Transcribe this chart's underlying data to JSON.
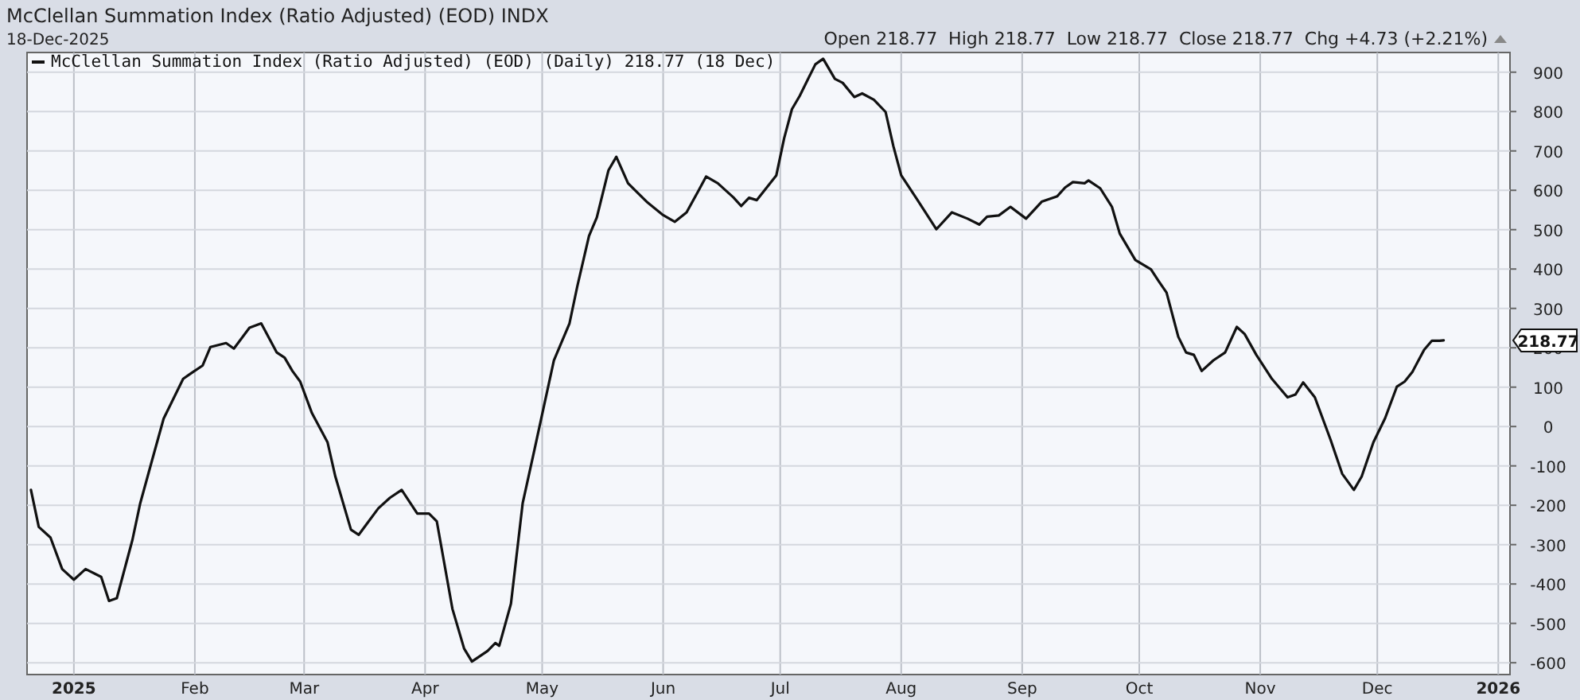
{
  "chart_data": {
    "type": "line",
    "title": "McClellan Summation Index (Ratio Adjusted) (EOD) INDX",
    "subtitle": "18-Dec-2025",
    "annotations": [
      "Open 218.77  High 218.77  Low 218.77  Close 218.77  Chg +4.73 (+2.21%)",
      "218.77"
    ],
    "x": [
      "2024-12-21",
      "2024-12-23",
      "2024-12-26",
      "2024-12-29",
      "2025-01-01",
      "2025-01-04",
      "2025-01-08",
      "2025-01-10",
      "2025-01-12",
      "2025-01-16",
      "2025-01-18",
      "2025-01-21",
      "2025-01-24",
      "2025-01-29",
      "2025-01-31",
      "2025-02-03",
      "2025-02-05",
      "2025-02-09",
      "2025-02-11",
      "2025-02-15",
      "2025-02-18",
      "2025-02-22",
      "2025-02-24",
      "2025-02-26",
      "2025-02-28",
      "2025-03-03",
      "2025-03-07",
      "2025-03-09",
      "2025-03-13",
      "2025-03-15",
      "2025-03-17",
      "2025-03-20",
      "2025-03-23",
      "2025-03-26",
      "2025-03-30",
      "2025-04-02",
      "2025-04-04",
      "2025-04-08",
      "2025-04-11",
      "2025-04-13",
      "2025-04-17",
      "2025-04-19",
      "2025-04-20",
      "2025-04-23",
      "2025-04-26",
      "2025-04-29",
      "2025-05-04",
      "2025-05-08",
      "2025-05-10",
      "2025-05-13",
      "2025-05-15",
      "2025-05-18",
      "2025-05-20",
      "2025-05-23",
      "2025-05-25",
      "2025-05-28",
      "2025-06-01",
      "2025-06-04",
      "2025-06-07",
      "2025-06-10",
      "2025-06-12",
      "2025-06-15",
      "2025-06-19",
      "2025-06-21",
      "2025-06-23",
      "2025-06-25",
      "2025-06-30",
      "2025-07-02",
      "2025-07-04",
      "2025-07-06",
      "2025-07-10",
      "2025-07-12",
      "2025-07-15",
      "2025-07-17",
      "2025-07-20",
      "2025-07-22",
      "2025-07-25",
      "2025-07-28",
      "2025-07-30",
      "2025-08-01",
      "2025-08-05",
      "2025-08-10",
      "2025-08-14",
      "2025-08-18",
      "2025-08-21",
      "2025-08-23",
      "2025-08-26",
      "2025-08-29",
      "2025-09-02",
      "2025-09-06",
      "2025-09-10",
      "2025-09-12",
      "2025-09-14",
      "2025-09-17",
      "2025-09-18",
      "2025-09-21",
      "2025-09-24",
      "2025-09-26",
      "2025-09-30",
      "2025-10-04",
      "2025-10-06",
      "2025-10-08",
      "2025-10-11",
      "2025-10-13",
      "2025-10-15",
      "2025-10-17",
      "2025-10-20",
      "2025-10-23",
      "2025-10-26",
      "2025-10-28",
      "2025-10-31",
      "2025-11-04",
      "2025-11-08",
      "2025-11-10",
      "2025-11-12",
      "2025-11-15",
      "2025-11-19",
      "2025-11-22",
      "2025-11-25",
      "2025-11-27",
      "2025-11-30",
      "2025-12-03",
      "2025-12-06",
      "2025-12-08",
      "2025-12-10",
      "2025-12-13",
      "2025-12-15",
      "2025-12-17",
      "2025-12-18"
    ],
    "series": [
      {
        "name": "McClellan Summation Index (Ratio Adjusted) (EOD) (Daily) 218.77 (18 Dec)",
        "color": "#111111",
        "values": [
          -161,
          -255,
          -282,
          -362,
          -389,
          -362,
          -382,
          -443,
          -436,
          -288,
          -195,
          -87,
          20,
          121,
          135,
          155,
          202,
          212,
          198,
          251,
          262,
          188,
          175,
          141,
          114,
          34,
          -40,
          -127,
          -262,
          -275,
          -248,
          -208,
          -181,
          -161,
          -221,
          -221,
          -241,
          -463,
          -564,
          -597,
          -570,
          -550,
          -557,
          -450,
          -195,
          -60,
          168,
          262,
          356,
          484,
          531,
          651,
          685,
          618,
          598,
          569,
          537,
          520,
          544,
          598,
          635,
          618,
          582,
          560,
          581,
          575,
          638,
          732,
          806,
          840,
          920,
          934,
          883,
          873,
          837,
          846,
          830,
          799,
          712,
          638,
          578,
          501,
          544,
          528,
          513,
          533,
          536,
          558,
          528,
          571,
          585,
          607,
          621,
          618,
          625,
          605,
          558,
          490,
          423,
          399,
          369,
          340,
          228,
          188,
          182,
          141,
          168,
          188,
          253,
          235,
          182,
          121,
          74,
          81,
          112,
          74,
          -33,
          -120,
          -161,
          -127,
          -40,
          21,
          101,
          114,
          139,
          195,
          218,
          218,
          218.77
        ]
      }
    ],
    "xlim": [
      "2024-12-20",
      "2026-01-04"
    ],
    "xticks": [
      {
        "value": "2025-01-01",
        "label": "2025"
      },
      {
        "value": "2025-02-01",
        "label": "Feb"
      },
      {
        "value": "2025-03-01",
        "label": "Mar"
      },
      {
        "value": "2025-04-01",
        "label": "Apr"
      },
      {
        "value": "2025-05-01",
        "label": "May"
      },
      {
        "value": "2025-06-01",
        "label": "Jun"
      },
      {
        "value": "2025-07-01",
        "label": "Jul"
      },
      {
        "value": "2025-08-01",
        "label": "Aug"
      },
      {
        "value": "2025-09-01",
        "label": "Sep"
      },
      {
        "value": "2025-10-01",
        "label": "Oct"
      },
      {
        "value": "2025-11-01",
        "label": "Nov"
      },
      {
        "value": "2025-12-01",
        "label": "Dec"
      },
      {
        "value": "2026-01-01",
        "label": "2026"
      }
    ],
    "ylim": [
      -630,
      950
    ],
    "yticks": [
      -600,
      -500,
      -400,
      -300,
      -200,
      -100,
      0,
      100,
      200,
      300,
      400,
      500,
      600,
      700,
      800,
      900
    ],
    "grid": true,
    "legend": "top left",
    "marker": "none",
    "line_style": "solid"
  }
}
